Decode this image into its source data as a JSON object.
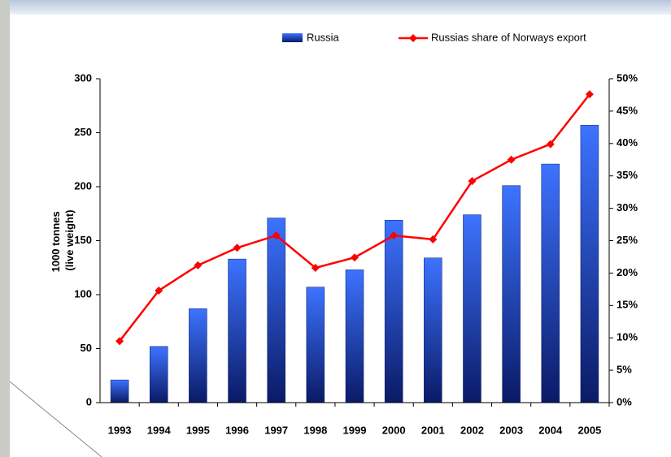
{
  "chart_data": {
    "type": "bar_line",
    "ylabel": [
      "1000 tonnes",
      "(live weight)"
    ],
    "categories": [
      "1993",
      "1994",
      "1995",
      "1996",
      "1997",
      "1998",
      "1999",
      "2000",
      "2001",
      "2002",
      "2003",
      "2004",
      "2005"
    ],
    "series": [
      {
        "name": "Russia",
        "type": "bar",
        "color": "#2450d8",
        "values": [
          21,
          52,
          87,
          133,
          171,
          107,
          123,
          169,
          134,
          174,
          201,
          221,
          257
        ]
      },
      {
        "name": "Russias share of Norways export",
        "type": "line",
        "axis": "y2",
        "color": "#ff0000",
        "values": [
          9.5,
          17.3,
          21.2,
          23.9,
          25.8,
          20.8,
          22.4,
          25.8,
          25.2,
          34.2,
          37.5,
          39.9,
          47.6
        ]
      }
    ],
    "ylim": [
      0,
      300
    ],
    "yticks": [
      0,
      50,
      100,
      150,
      200,
      250,
      300
    ],
    "y2lim": [
      0,
      50
    ],
    "y2ticks": [
      {
        "value": 0,
        "label": "0%"
      },
      {
        "value": 5,
        "label": "5%"
      },
      {
        "value": 10,
        "label": "10%"
      },
      {
        "value": 15,
        "label": "15%"
      },
      {
        "value": 20,
        "label": "20%"
      },
      {
        "value": 25,
        "label": "25%"
      },
      {
        "value": 30,
        "label": "30%"
      },
      {
        "value": 35,
        "label": "35%"
      },
      {
        "value": 40,
        "label": "40%"
      },
      {
        "value": 45,
        "label": "45%"
      },
      {
        "value": 50,
        "label": "50%"
      }
    ],
    "grid": false
  }
}
